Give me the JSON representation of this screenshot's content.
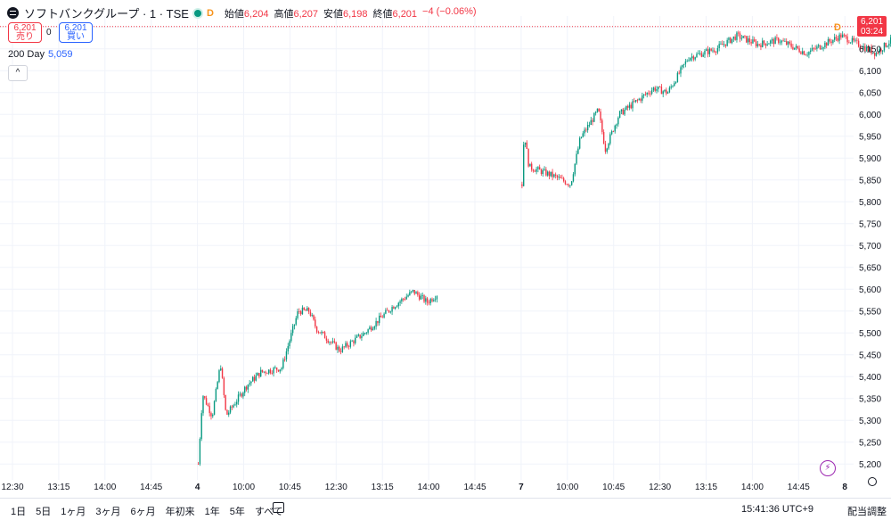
{
  "header": {
    "symbol_title": "ソフトバンクグループ · 1 · TSE",
    "d_badge": "D",
    "ohlc": {
      "open_label": "始値",
      "open": "6,204",
      "high_label": "高値",
      "high": "6,207",
      "low_label": "安値",
      "low": "6,198",
      "close_label": "終値",
      "close": "6,201",
      "change": "−4 (−0.06%)"
    }
  },
  "trade": {
    "sell_price": "6,201",
    "sell_label": "売り",
    "spread": "0",
    "buy_price": "6,201",
    "buy_label": "買い"
  },
  "indicator": {
    "name": "200 Day",
    "value": "5,059"
  },
  "collapse_glyph": "^",
  "price_badge": {
    "price": "6,201",
    "countdown": "03:24"
  },
  "d_marker": "D",
  "colors": {
    "up": "#089981",
    "down": "#f23645",
    "ma": "#2962ff",
    "accent": "#f7931a"
  },
  "bottom": {
    "ranges": [
      "1日",
      "5日",
      "1ヶ月",
      "3ヶ月",
      "6ヶ月",
      "年初来",
      "1年",
      "5年",
      "すべて"
    ],
    "clock": "15:41:36 UTC+9",
    "adjust": "配当調整"
  },
  "chart_data": {
    "type": "candlestick",
    "ylim": [
      5180,
      6225
    ],
    "y_ticks": [
      5200,
      5250,
      5300,
      5350,
      5400,
      5450,
      5500,
      5550,
      5600,
      5650,
      5700,
      5750,
      5800,
      5850,
      5900,
      5950,
      6000,
      6050,
      6100,
      6150,
      6200
    ],
    "y_tick_labels": [
      "5,200",
      "5,250",
      "5,300",
      "5,350",
      "5,400",
      "5,450",
      "5,500",
      "5,550",
      "5,600",
      "5,650",
      "5,700",
      "5,750",
      "5,800",
      "5,850",
      "5,900",
      "5,950",
      "6,000",
      "6,050",
      "6,100",
      "6,150",
      "6,200"
    ],
    "x_tick_labels": [
      "12:30",
      "13:15",
      "14:00",
      "14:45",
      "4",
      "10:00",
      "10:45",
      "12:30",
      "13:15",
      "14:00",
      "14:45",
      "7",
      "10:00",
      "10:45",
      "12:30",
      "13:15",
      "14:00",
      "14:45",
      "8"
    ],
    "last_price": 6201,
    "sessions": [
      {
        "label": "4",
        "path": [
          [
            5200,
            0
          ],
          [
            5360,
            0.03
          ],
          [
            5310,
            0.1
          ],
          [
            5430,
            0.16
          ],
          [
            5310,
            0.2
          ],
          [
            5380,
            0.35
          ],
          [
            5410,
            0.45
          ],
          [
            5420,
            0.6
          ],
          [
            5550,
            0.72
          ],
          [
            5550,
            0.8
          ],
          [
            5510,
            0.85
          ],
          [
            5460,
            1.02
          ],
          [
            5500,
            1.2
          ],
          [
            5560,
            1.4
          ],
          [
            5595,
            1.55
          ],
          [
            5570,
            1.65
          ],
          [
            5588,
            1.72
          ]
        ]
      },
      {
        "label": "7",
        "path": [
          [
            5840,
            0
          ],
          [
            5960,
            0.015
          ],
          [
            5880,
            0.05
          ],
          [
            5860,
            0.22
          ],
          [
            5840,
            0.35
          ],
          [
            5945,
            0.42
          ],
          [
            6010,
            0.55
          ],
          [
            5920,
            0.6
          ],
          [
            6000,
            0.7
          ],
          [
            6060,
            0.95
          ],
          [
            6050,
            1.05
          ],
          [
            6130,
            1.2
          ],
          [
            6150,
            1.4
          ],
          [
            6180,
            1.55
          ],
          [
            6160,
            1.7
          ],
          [
            6170,
            1.85
          ],
          [
            6140,
            2.05
          ],
          [
            6180,
            2.3
          ],
          [
            6140,
            2.55
          ],
          [
            6180,
            2.7
          ],
          [
            6205,
            2.85
          ],
          [
            6201,
            2.9
          ]
        ]
      }
    ]
  }
}
